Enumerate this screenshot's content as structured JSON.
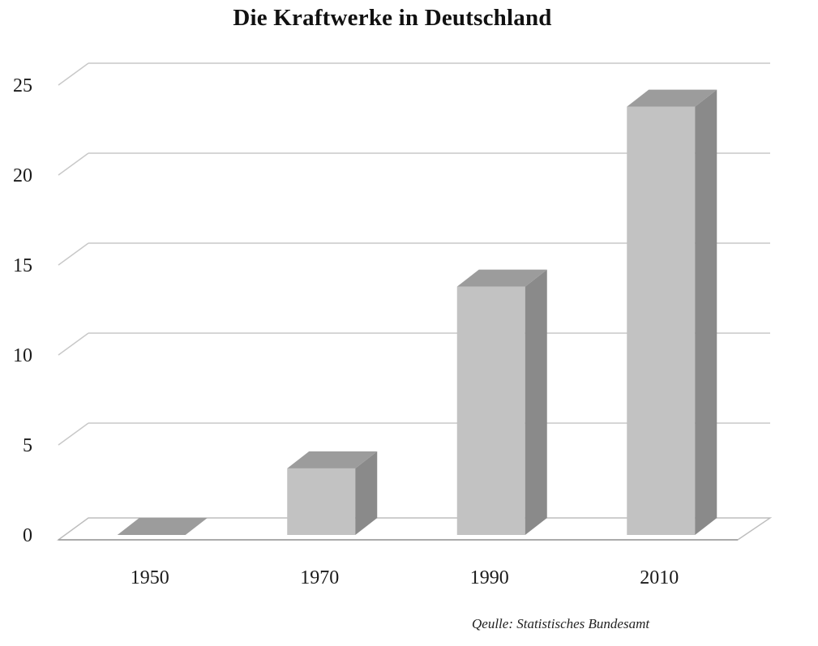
{
  "title": "Die Kraftwerke in Deutschland",
  "source": "Qeulle: Statistisches Bundesamt",
  "chart_data": {
    "type": "bar",
    "title": "Die Kraftwerke in Deutschland",
    "categories": [
      "1950",
      "1970",
      "1990",
      "2010"
    ],
    "values": [
      0,
      3.7,
      13.8,
      23.8
    ],
    "ylim": [
      0,
      25
    ],
    "yticks": [
      "0",
      "5",
      "10",
      "15",
      "20",
      "25"
    ],
    "xlabel": "",
    "ylabel": "",
    "grid": true,
    "style": "3d-grayscale",
    "colors": {
      "front": "#c2c2c2",
      "side": "#8a8a8a",
      "top": "#9c9c9c",
      "grid": "#c8c8c8"
    }
  }
}
